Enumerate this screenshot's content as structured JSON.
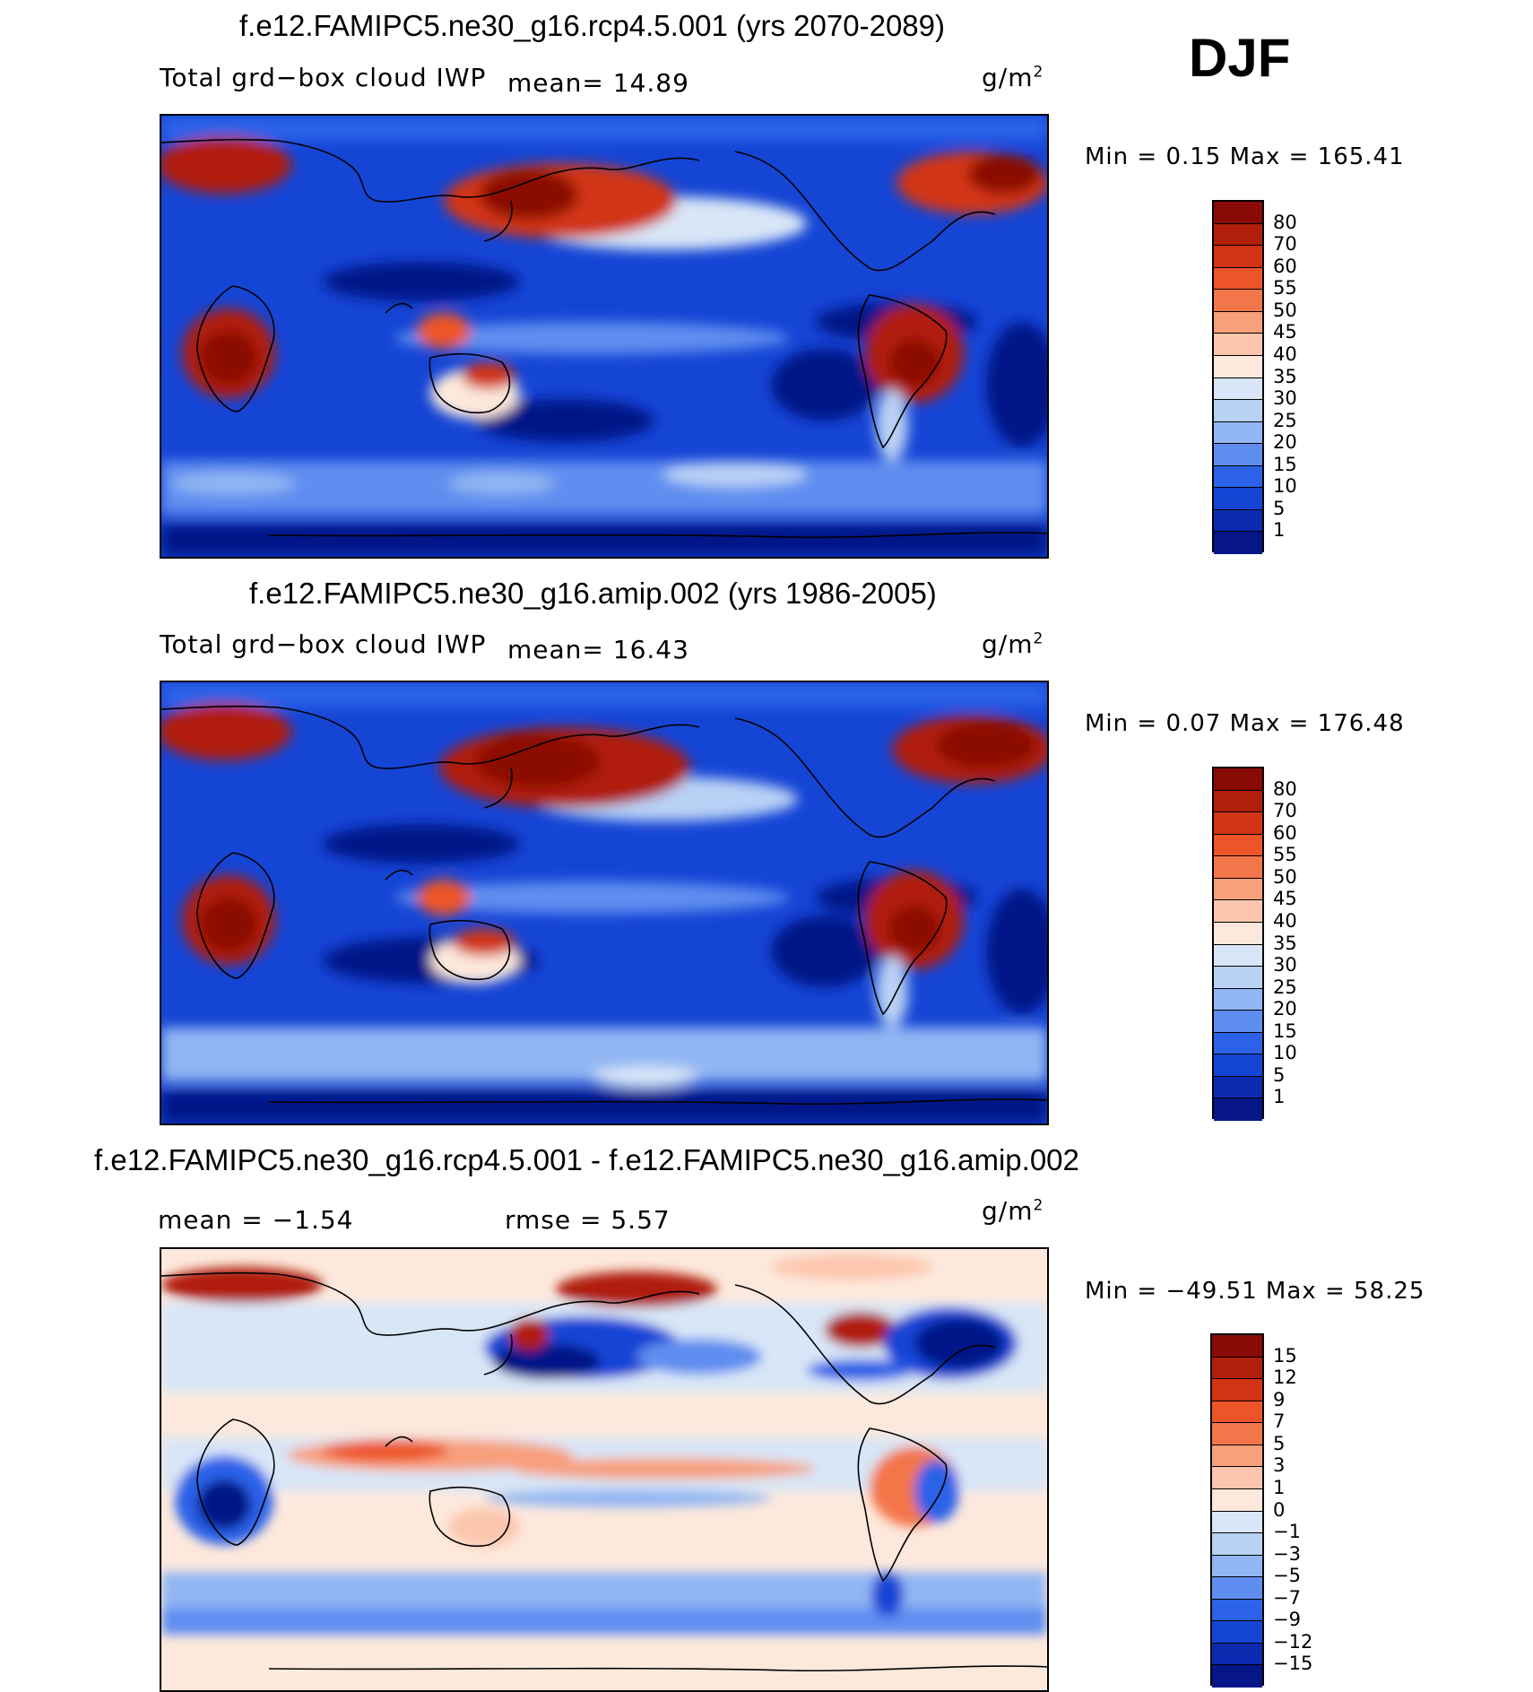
{
  "season": "DJF",
  "panels": [
    {
      "title": "f.e12.FAMIPC5.ne30_g16.rcp4.5.001 (yrs 2070-2089)",
      "field": "Total grd−box cloud IWP",
      "mean_text": "mean=   14.89",
      "units": "g/m",
      "units_exp": "2",
      "minmax": "Min =    0.15  Max  =  165.41",
      "colors": [
        "#8a0a06",
        "#b01f0a",
        "#d13414",
        "#ed5528",
        "#f3764a",
        "#f89f7b",
        "#fcc6ae",
        "#fde9dc",
        "#d8e6f7",
        "#b9d1f5",
        "#92b6f3",
        "#5f8ef0",
        "#2c62e8",
        "#1545d5",
        "#0c2ab0",
        "#061688"
      ],
      "ticks": [
        "80",
        "70",
        "60",
        "55",
        "50",
        "45",
        "40",
        "35",
        "30",
        "25",
        "20",
        "15",
        "10",
        "5",
        "1"
      ]
    },
    {
      "title": "f.e12.FAMIPC5.ne30_g16.amip.002 (yrs 1986-2005)",
      "field": "Total grd−box cloud IWP",
      "mean_text": "mean=   16.43",
      "units": "g/m",
      "units_exp": "2",
      "minmax": "Min =    0.07  Max  =  176.48",
      "colors": [
        "#8a0a06",
        "#b01f0a",
        "#d13414",
        "#ed5528",
        "#f3764a",
        "#f89f7b",
        "#fcc6ae",
        "#fde9dc",
        "#d8e6f7",
        "#b9d1f5",
        "#92b6f3",
        "#5f8ef0",
        "#2c62e8",
        "#1545d5",
        "#0c2ab0",
        "#061688"
      ],
      "ticks": [
        "80",
        "70",
        "60",
        "55",
        "50",
        "45",
        "40",
        "35",
        "30",
        "25",
        "20",
        "15",
        "10",
        "5",
        "1"
      ]
    },
    {
      "title": "f.e12.FAMIPC5.ne30_g16.rcp4.5.001 - f.e12.FAMIPC5.ne30_g16.amip.002",
      "mean_text": "mean  =   −1.54",
      "rmse_text": "rmse  =     5.57",
      "units": "g/m",
      "units_exp": "2",
      "minmax": "Min  = −49.51  Max  =    58.25",
      "colors": [
        "#8a0a06",
        "#b01f0a",
        "#d13414",
        "#ed5528",
        "#f3764a",
        "#f89f7b",
        "#fcc6ae",
        "#fde9dc",
        "#d8e6f7",
        "#b9d1f5",
        "#92b6f3",
        "#5f8ef0",
        "#2c62e8",
        "#1545d5",
        "#0c2ab0",
        "#061688"
      ],
      "ticks": [
        "15",
        "12",
        "9",
        "7",
        "5",
        "3",
        "1",
        "0",
        "−1",
        "−3",
        "−5",
        "−7",
        "−9",
        "−12",
        "−15"
      ]
    }
  ]
}
